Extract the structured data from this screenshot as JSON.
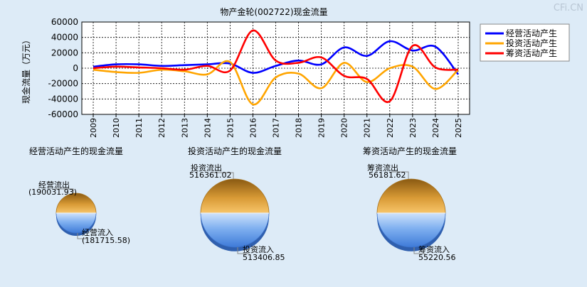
{
  "watermark": "CFi.CN",
  "chart_data": [
    {
      "type": "line",
      "title": "物产金轮(002722)现金流量",
      "ylabel": "现金流量（万元）",
      "xlabel": "",
      "categories": [
        "2009",
        "2010",
        "2011",
        "2012",
        "2013",
        "2014",
        "2015",
        "2016",
        "2017",
        "2018",
        "2019",
        "2020",
        "2021",
        "2022",
        "2023",
        "2024",
        "2025"
      ],
      "ylim": [
        -60000,
        60000
      ],
      "yticks": [
        60000,
        40000,
        20000,
        0,
        -20000,
        -40000,
        -60000
      ],
      "ytick_labels": [
        "60000",
        "40000",
        "20000",
        "0",
        "-20000",
        "-40000",
        "-60000"
      ],
      "grid": true,
      "legend_position": "top-right",
      "series": [
        {
          "name": "经营活动产生",
          "color": "#0000ff",
          "values": [
            2000,
            5000,
            5000,
            3000,
            4000,
            5000,
            6000,
            -6000,
            3000,
            10000,
            5000,
            27000,
            16000,
            35000,
            23000,
            28000,
            -8000
          ]
        },
        {
          "name": "投资活动产生",
          "color": "#ffa500",
          "values": [
            -2000,
            -5000,
            -6000,
            -2000,
            -4000,
            -8000,
            8000,
            -47000,
            -12000,
            -7000,
            -26000,
            7000,
            -18000,
            0,
            2000,
            -27000,
            -2000
          ]
        },
        {
          "name": "筹资活动产生",
          "color": "#ff0000",
          "values": [
            0,
            2000,
            1000,
            0,
            -2000,
            3000,
            -3000,
            49000,
            10000,
            7000,
            14000,
            -10000,
            -14000,
            -43000,
            29000,
            1000,
            -2000
          ]
        }
      ]
    },
    {
      "type": "pie",
      "title": "经营活动产生的现金流量",
      "out_label": "经营流出",
      "out_value_text": "(190031.93)",
      "in_label": "经营流入",
      "in_value_text": "(181715.58)",
      "out_value": 190031.93,
      "in_value": 181715.58
    },
    {
      "type": "pie",
      "title": "投资活动产生的现金流量",
      "out_label": "投资流出",
      "out_value_text": "516361.02",
      "in_label": "投资流入",
      "in_value_text": "513406.85",
      "out_value": 516361.02,
      "in_value": 513406.85
    },
    {
      "type": "pie",
      "title": "筹资活动产生的现金流量",
      "out_label": "筹资流出",
      "out_value_text": "56181.62",
      "in_label": "筹资流入",
      "in_value_text": "55220.56",
      "out_value": 56181.62,
      "in_value": 55220.56
    }
  ]
}
